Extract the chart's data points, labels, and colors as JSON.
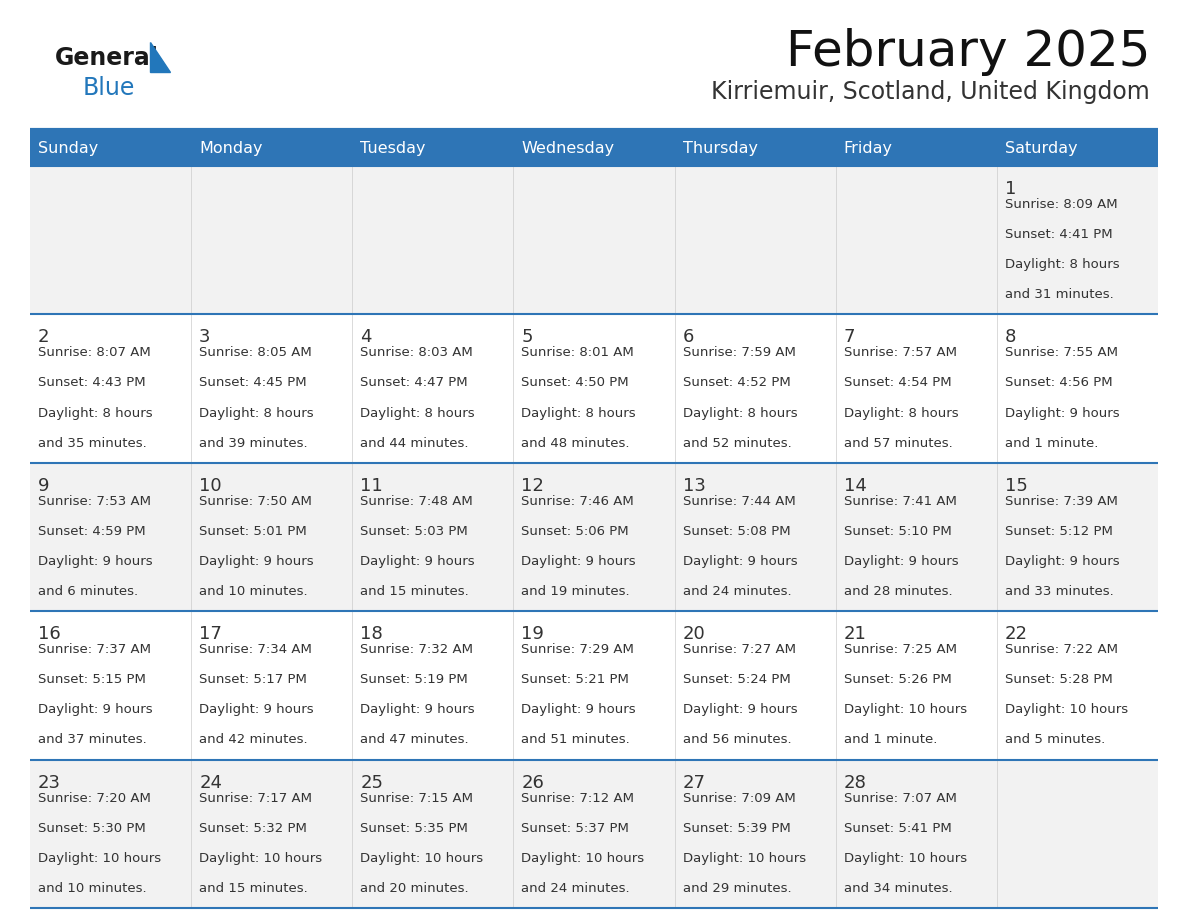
{
  "title": "February 2025",
  "subtitle": "Kirriemuir, Scotland, United Kingdom",
  "days_of_week": [
    "Sunday",
    "Monday",
    "Tuesday",
    "Wednesday",
    "Thursday",
    "Friday",
    "Saturday"
  ],
  "header_bg": "#2E75B6",
  "header_text": "#FFFFFF",
  "row_bg_odd": "#F2F2F2",
  "row_bg_even": "#FFFFFF",
  "separator_color": "#2E75B6",
  "day_number_color": "#333333",
  "text_color": "#333333",
  "logo_text_color": "#1a1a1a",
  "logo_blue_color": "#2277BB",
  "calendar_data": [
    [
      null,
      null,
      null,
      null,
      null,
      null,
      {
        "day": 1,
        "sunrise": "8:09 AM",
        "sunset": "4:41 PM",
        "daylight1": "8 hours",
        "daylight2": "and 31 minutes."
      }
    ],
    [
      {
        "day": 2,
        "sunrise": "8:07 AM",
        "sunset": "4:43 PM",
        "daylight1": "8 hours",
        "daylight2": "and 35 minutes."
      },
      {
        "day": 3,
        "sunrise": "8:05 AM",
        "sunset": "4:45 PM",
        "daylight1": "8 hours",
        "daylight2": "and 39 minutes."
      },
      {
        "day": 4,
        "sunrise": "8:03 AM",
        "sunset": "4:47 PM",
        "daylight1": "8 hours",
        "daylight2": "and 44 minutes."
      },
      {
        "day": 5,
        "sunrise": "8:01 AM",
        "sunset": "4:50 PM",
        "daylight1": "8 hours",
        "daylight2": "and 48 minutes."
      },
      {
        "day": 6,
        "sunrise": "7:59 AM",
        "sunset": "4:52 PM",
        "daylight1": "8 hours",
        "daylight2": "and 52 minutes."
      },
      {
        "day": 7,
        "sunrise": "7:57 AM",
        "sunset": "4:54 PM",
        "daylight1": "8 hours",
        "daylight2": "and 57 minutes."
      },
      {
        "day": 8,
        "sunrise": "7:55 AM",
        "sunset": "4:56 PM",
        "daylight1": "9 hours",
        "daylight2": "and 1 minute."
      }
    ],
    [
      {
        "day": 9,
        "sunrise": "7:53 AM",
        "sunset": "4:59 PM",
        "daylight1": "9 hours",
        "daylight2": "and 6 minutes."
      },
      {
        "day": 10,
        "sunrise": "7:50 AM",
        "sunset": "5:01 PM",
        "daylight1": "9 hours",
        "daylight2": "and 10 minutes."
      },
      {
        "day": 11,
        "sunrise": "7:48 AM",
        "sunset": "5:03 PM",
        "daylight1": "9 hours",
        "daylight2": "and 15 minutes."
      },
      {
        "day": 12,
        "sunrise": "7:46 AM",
        "sunset": "5:06 PM",
        "daylight1": "9 hours",
        "daylight2": "and 19 minutes."
      },
      {
        "day": 13,
        "sunrise": "7:44 AM",
        "sunset": "5:08 PM",
        "daylight1": "9 hours",
        "daylight2": "and 24 minutes."
      },
      {
        "day": 14,
        "sunrise": "7:41 AM",
        "sunset": "5:10 PM",
        "daylight1": "9 hours",
        "daylight2": "and 28 minutes."
      },
      {
        "day": 15,
        "sunrise": "7:39 AM",
        "sunset": "5:12 PM",
        "daylight1": "9 hours",
        "daylight2": "and 33 minutes."
      }
    ],
    [
      {
        "day": 16,
        "sunrise": "7:37 AM",
        "sunset": "5:15 PM",
        "daylight1": "9 hours",
        "daylight2": "and 37 minutes."
      },
      {
        "day": 17,
        "sunrise": "7:34 AM",
        "sunset": "5:17 PM",
        "daylight1": "9 hours",
        "daylight2": "and 42 minutes."
      },
      {
        "day": 18,
        "sunrise": "7:32 AM",
        "sunset": "5:19 PM",
        "daylight1": "9 hours",
        "daylight2": "and 47 minutes."
      },
      {
        "day": 19,
        "sunrise": "7:29 AM",
        "sunset": "5:21 PM",
        "daylight1": "9 hours",
        "daylight2": "and 51 minutes."
      },
      {
        "day": 20,
        "sunrise": "7:27 AM",
        "sunset": "5:24 PM",
        "daylight1": "9 hours",
        "daylight2": "and 56 minutes."
      },
      {
        "day": 21,
        "sunrise": "7:25 AM",
        "sunset": "5:26 PM",
        "daylight1": "10 hours",
        "daylight2": "and 1 minute."
      },
      {
        "day": 22,
        "sunrise": "7:22 AM",
        "sunset": "5:28 PM",
        "daylight1": "10 hours",
        "daylight2": "and 5 minutes."
      }
    ],
    [
      {
        "day": 23,
        "sunrise": "7:20 AM",
        "sunset": "5:30 PM",
        "daylight1": "10 hours",
        "daylight2": "and 10 minutes."
      },
      {
        "day": 24,
        "sunrise": "7:17 AM",
        "sunset": "5:32 PM",
        "daylight1": "10 hours",
        "daylight2": "and 15 minutes."
      },
      {
        "day": 25,
        "sunrise": "7:15 AM",
        "sunset": "5:35 PM",
        "daylight1": "10 hours",
        "daylight2": "and 20 minutes."
      },
      {
        "day": 26,
        "sunrise": "7:12 AM",
        "sunset": "5:37 PM",
        "daylight1": "10 hours",
        "daylight2": "and 24 minutes."
      },
      {
        "day": 27,
        "sunrise": "7:09 AM",
        "sunset": "5:39 PM",
        "daylight1": "10 hours",
        "daylight2": "and 29 minutes."
      },
      {
        "day": 28,
        "sunrise": "7:07 AM",
        "sunset": "5:41 PM",
        "daylight1": "10 hours",
        "daylight2": "and 34 minutes."
      },
      null
    ]
  ]
}
